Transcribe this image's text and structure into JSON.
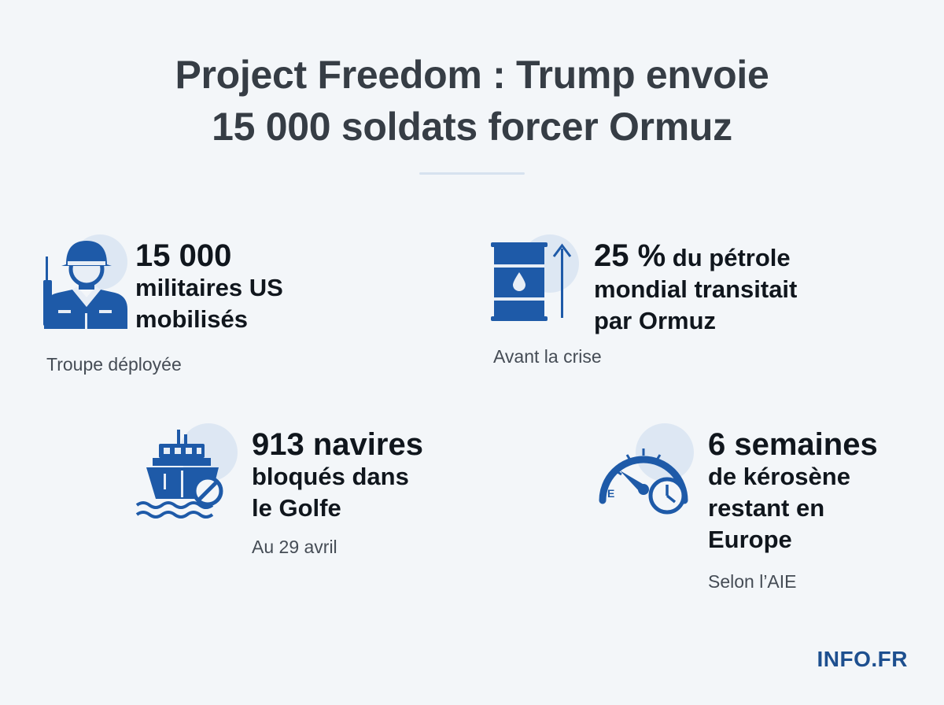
{
  "title": {
    "line1": "Project Freedom : Trump envoie",
    "line2": "15 000 soldats forcer Ormuz"
  },
  "stats": {
    "soldiers": {
      "icon": "soldier-icon",
      "headline": "15 000",
      "line2": "militaires US",
      "line3": "mobilisés",
      "note": "Troupe déployée"
    },
    "oil": {
      "icon": "oil-barrel-icon",
      "headline": "25 %",
      "headline_rest": " du pétrole",
      "line2": "mondial transitait",
      "line3": "par Ormuz",
      "note": "Avant la crise"
    },
    "ships": {
      "icon": "blocked-ship-icon",
      "headline": "913 navires",
      "line2": "bloqués dans",
      "line3": "le Golfe",
      "note": "Au 29 avril"
    },
    "kerosene": {
      "icon": "fuel-gauge-clock-icon",
      "headline": "6 semaines",
      "line2": "de kérosène",
      "line3": "restant en",
      "line4": "Europe",
      "note": "Selon l’AIE"
    }
  },
  "brand": "INFO.FR",
  "colors": {
    "icon_blue": "#1e5aa8",
    "icon_halo": "#dde7f3",
    "background": "#f3f6f9"
  }
}
